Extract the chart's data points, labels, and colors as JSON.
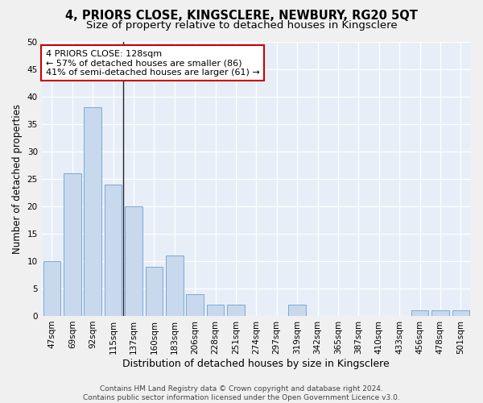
{
  "title": "4, PRIORS CLOSE, KINGSCLERE, NEWBURY, RG20 5QT",
  "subtitle": "Size of property relative to detached houses in Kingsclere",
  "xlabel": "Distribution of detached houses by size in Kingsclere",
  "ylabel": "Number of detached properties",
  "categories": [
    "47sqm",
    "69sqm",
    "92sqm",
    "115sqm",
    "137sqm",
    "160sqm",
    "183sqm",
    "206sqm",
    "228sqm",
    "251sqm",
    "274sqm",
    "297sqm",
    "319sqm",
    "342sqm",
    "365sqm",
    "387sqm",
    "410sqm",
    "433sqm",
    "456sqm",
    "478sqm",
    "501sqm"
  ],
  "values": [
    10,
    26,
    38,
    24,
    20,
    9,
    11,
    4,
    2,
    2,
    0,
    0,
    2,
    0,
    0,
    0,
    0,
    0,
    1,
    1,
    1
  ],
  "bar_color": "#c8d8ed",
  "bar_edge_color": "#7aaad0",
  "annotation_text": "4 PRIORS CLOSE: 128sqm\n← 57% of detached houses are smaller (86)\n41% of semi-detached houses are larger (61) →",
  "annotation_box_facecolor": "#ffffff",
  "annotation_box_edgecolor": "#cc0000",
  "ylim": [
    0,
    50
  ],
  "yticks": [
    0,
    5,
    10,
    15,
    20,
    25,
    30,
    35,
    40,
    45,
    50
  ],
  "footer_line1": "Contains HM Land Registry data © Crown copyright and database right 2024.",
  "footer_line2": "Contains public sector information licensed under the Open Government Licence v3.0.",
  "fig_facecolor": "#f0f0f0",
  "axes_facecolor": "#e8eef8",
  "grid_color": "#ffffff",
  "title_fontsize": 10.5,
  "subtitle_fontsize": 9.5,
  "ylabel_fontsize": 8.5,
  "xlabel_fontsize": 9,
  "tick_fontsize": 7.5,
  "annotation_fontsize": 8,
  "footer_fontsize": 6.5
}
